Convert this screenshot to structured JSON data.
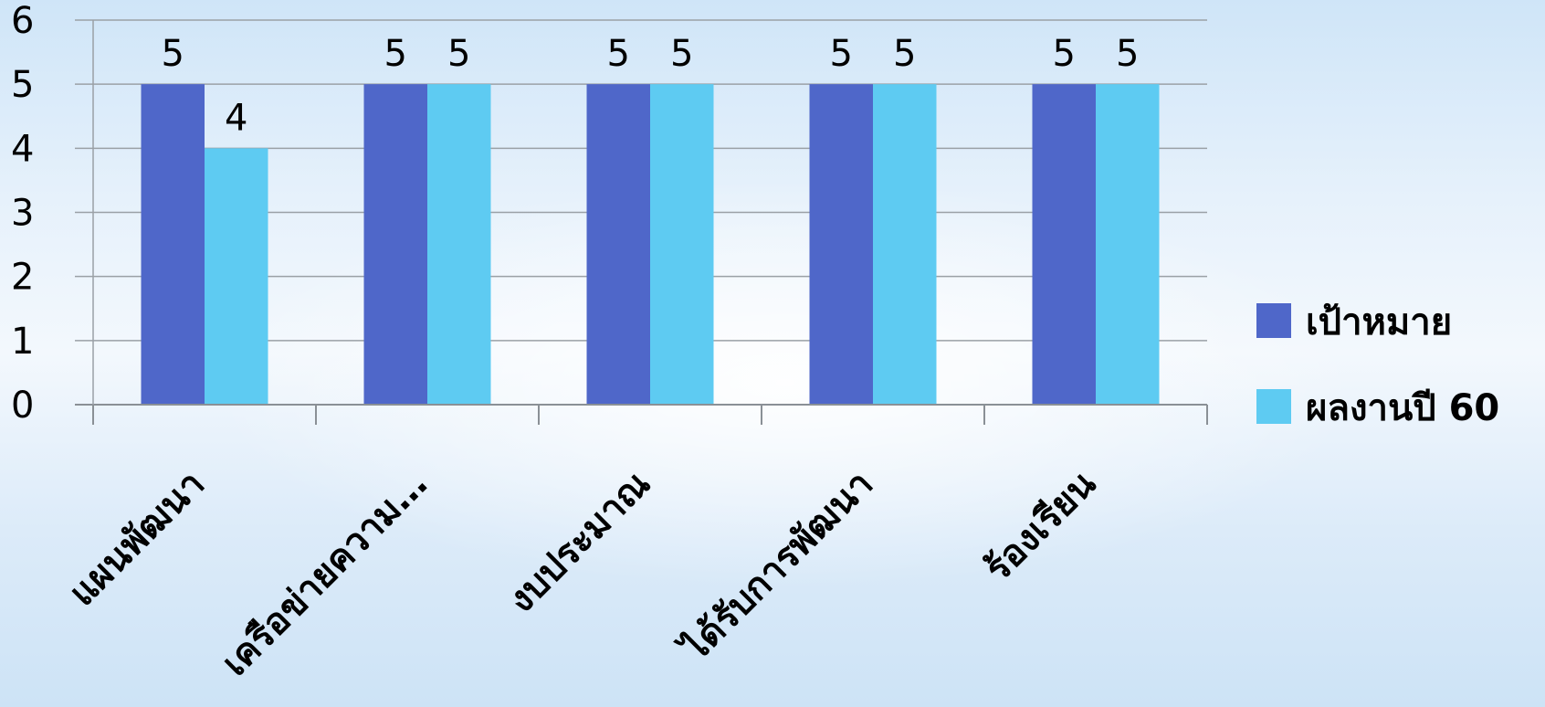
{
  "chart_data": {
    "type": "bar",
    "categories": [
      "แผนพัฒนา",
      "เครือข่ายความ…",
      "งบประมาณ",
      "ได้รับการพัฒนา",
      "ร้องเรียน"
    ],
    "series": [
      {
        "name": "เป้าหมาย",
        "values": [
          5,
          5,
          5,
          5,
          5
        ],
        "color": "#4f67c9"
      },
      {
        "name": "ผลงานปี 60",
        "values": [
          4,
          5,
          5,
          5,
          5
        ],
        "color": "#5ecbf2"
      }
    ],
    "ylim": [
      0,
      6
    ],
    "yticks": [
      "0",
      "1",
      "2",
      "3",
      "4",
      "5",
      "6"
    ],
    "grid": true,
    "legend": "right",
    "data_labels": true
  }
}
